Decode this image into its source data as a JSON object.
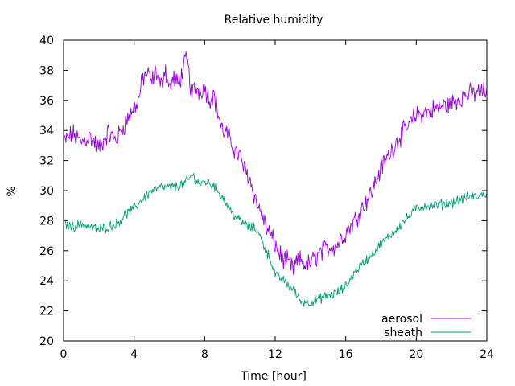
{
  "chart_data": {
    "type": "line",
    "title": "Relative humidity",
    "xlabel": "Time [hour]",
    "ylabel": "%",
    "xlim": [
      0,
      24
    ],
    "ylim": [
      20,
      40
    ],
    "xticks": [
      0,
      4,
      8,
      12,
      16,
      20,
      24
    ],
    "yticks": [
      20,
      22,
      24,
      26,
      28,
      30,
      32,
      34,
      36,
      38,
      40
    ],
    "grid": false,
    "legend_position": "bottom-right",
    "series": [
      {
        "name": "aerosol",
        "color": "#9400d3",
        "x": [
          0,
          0.5,
          1,
          1.5,
          2,
          2.5,
          3,
          3.5,
          4,
          4.25,
          4.5,
          4.75,
          5,
          5.25,
          5.5,
          5.75,
          6,
          6.25,
          6.5,
          6.75,
          7,
          7.25,
          7.5,
          7.75,
          8,
          8.25,
          8.5,
          8.75,
          9,
          9.25,
          9.5,
          9.75,
          10,
          10.25,
          10.5,
          10.75,
          11,
          11.25,
          11.5,
          11.75,
          12,
          12.25,
          12.5,
          12.75,
          13,
          13.25,
          13.5,
          13.75,
          14,
          14.5,
          15,
          15.5,
          16,
          16.5,
          17,
          17.5,
          18,
          18.5,
          19,
          19.5,
          20,
          20.5,
          21,
          21.5,
          22,
          22.5,
          23,
          23.5,
          24
        ],
        "y": [
          33.2,
          33.8,
          33.2,
          33.6,
          32.8,
          33.8,
          33.4,
          34.5,
          35.5,
          36.0,
          37.5,
          37.8,
          37.2,
          38.0,
          36.8,
          38.2,
          36.8,
          37.5,
          37.0,
          38.0,
          38.8,
          36.5,
          36.8,
          36.6,
          37.0,
          36.0,
          36.5,
          35.2,
          34.0,
          33.8,
          33.2,
          32.6,
          32.3,
          31.4,
          31.0,
          30.0,
          29.0,
          28.4,
          27.5,
          27.0,
          26.4,
          25.8,
          25.4,
          25.2,
          24.8,
          25.2,
          25.4,
          25.0,
          25.2,
          25.8,
          26.2,
          26.4,
          27.2,
          28.0,
          29.0,
          30.0,
          31.5,
          32.5,
          33.5,
          34.2,
          35.0,
          35.2,
          35.4,
          35.6,
          35.8,
          36.2,
          36.4,
          36.5,
          36.6
        ]
      },
      {
        "name": "sheath",
        "color": "#009e73",
        "x": [
          0,
          0.5,
          1,
          1.5,
          2,
          2.5,
          3,
          3.5,
          4,
          4.5,
          5,
          5.5,
          6,
          6.5,
          7,
          7.25,
          7.5,
          7.75,
          8,
          8.5,
          9,
          9.5,
          10,
          10.5,
          11,
          11.25,
          11.5,
          11.75,
          12,
          12.5,
          13,
          13.5,
          14,
          14.5,
          15,
          15.5,
          16,
          16.5,
          17,
          17.5,
          18,
          18.5,
          19,
          19.5,
          20,
          20.5,
          21,
          21.5,
          22,
          22.5,
          23,
          23.5,
          24
        ],
        "y": [
          27.8,
          27.6,
          27.8,
          27.6,
          27.4,
          27.6,
          27.8,
          28.4,
          28.8,
          29.5,
          30.0,
          30.2,
          30.2,
          30.3,
          30.6,
          31.0,
          30.8,
          30.4,
          30.6,
          30.4,
          29.6,
          28.6,
          28.0,
          27.6,
          27.4,
          26.6,
          26.0,
          25.4,
          24.4,
          24.0,
          23.4,
          22.6,
          22.6,
          22.8,
          23.0,
          23.2,
          23.6,
          24.6,
          25.2,
          25.8,
          26.4,
          27.0,
          27.6,
          28.2,
          28.8,
          29.0,
          29.0,
          29.1,
          29.2,
          29.4,
          29.6,
          29.6,
          29.8
        ]
      }
    ]
  }
}
